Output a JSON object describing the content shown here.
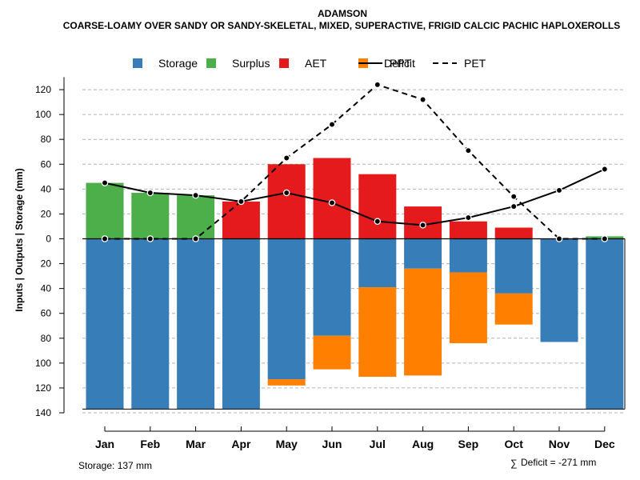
{
  "chart_data": {
    "type": "bar",
    "title": "ADAMSON",
    "subtitle": "COARSE-LOAMY OVER SANDY OR SANDY-SKELETAL, MIXED, SUPERACTIVE, FRIGID CALCIC PACHIC HAPLOXEROLLS",
    "ylabel": "Inputs | Outputs | Storage    (mm)",
    "yticks": [
      {
        "value": 120,
        "label": "120"
      },
      {
        "value": 100,
        "label": "100"
      },
      {
        "value": 80,
        "label": "80"
      },
      {
        "value": 60,
        "label": "60"
      },
      {
        "value": 40,
        "label": "40"
      },
      {
        "value": 20,
        "label": "20"
      },
      {
        "value": 0,
        "label": "0"
      },
      {
        "value": -20,
        "label": "20"
      },
      {
        "value": -40,
        "label": "40"
      },
      {
        "value": -60,
        "label": "60"
      },
      {
        "value": -80,
        "label": "80"
      },
      {
        "value": -100,
        "label": "100"
      },
      {
        "value": -120,
        "label": "120"
      },
      {
        "value": -140,
        "label": "140"
      }
    ],
    "ylim": [
      -140,
      130
    ],
    "categories": [
      "Jan",
      "Feb",
      "Mar",
      "Apr",
      "May",
      "Jun",
      "Jul",
      "Aug",
      "Sep",
      "Oct",
      "Nov",
      "Dec"
    ],
    "upper_series": [
      {
        "name": "Surplus",
        "color": "#4daf4a",
        "values": [
          45,
          37,
          35,
          0,
          0,
          0,
          0,
          0,
          0,
          0,
          0,
          2
        ]
      },
      {
        "name": "AET",
        "color": "#e41a1c",
        "values": [
          0,
          0,
          0,
          30,
          60,
          65,
          52,
          26,
          14,
          9,
          0,
          0
        ]
      }
    ],
    "lower_series": [
      {
        "name": "Storage",
        "color": "#377eb8",
        "values": [
          137,
          137,
          137,
          137,
          113,
          78,
          39,
          24,
          27,
          44,
          83,
          137
        ]
      },
      {
        "name": "Deficit",
        "color": "#ff7f00",
        "values": [
          0,
          0,
          0,
          0,
          5,
          27,
          72,
          86,
          57,
          25,
          0,
          0
        ]
      }
    ],
    "lines": [
      {
        "name": "PPT",
        "style": "solid",
        "values": [
          45,
          37,
          35,
          30,
          37,
          29,
          14,
          11,
          17,
          26,
          39,
          56
        ]
      },
      {
        "name": "PET",
        "style": "dashed",
        "values": [
          0,
          0,
          0,
          30,
          65,
          92,
          124,
          112,
          71,
          34,
          0,
          0
        ]
      }
    ],
    "legend": [
      {
        "label": "Storage",
        "kind": "box",
        "color": "#377eb8"
      },
      {
        "label": "Surplus",
        "kind": "box",
        "color": "#4daf4a"
      },
      {
        "label": "AET",
        "kind": "box",
        "color": "#e41a1c"
      },
      {
        "label": "Deficit",
        "kind": "box",
        "color": "#ff7f00"
      },
      {
        "label": "PPT",
        "kind": "line",
        "style": "solid"
      },
      {
        "label": "PET",
        "kind": "line",
        "style": "dashed"
      }
    ],
    "legend_position": "top",
    "grid": true,
    "storage_note": "Storage: 137 mm",
    "deficit_symbol": "∑",
    "deficit_note": "Deficit = -271 mm"
  }
}
